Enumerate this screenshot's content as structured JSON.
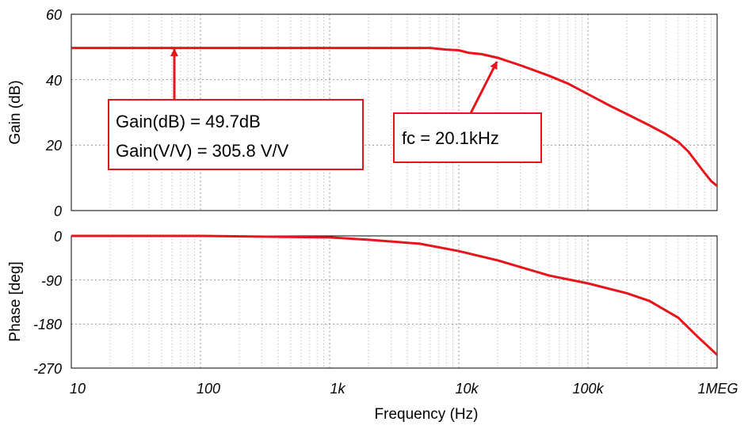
{
  "chart_data": [
    {
      "type": "line",
      "xscale": "log",
      "xlim": [
        10,
        1000000
      ],
      "ylim": [
        0,
        60
      ],
      "ylabel": "Gain (dB)",
      "xlabel": "",
      "yticks": [
        "60",
        "40",
        "20",
        "0"
      ],
      "grid": true,
      "series": [
        {
          "color": "#e8141b",
          "x": [
            10,
            100,
            1000,
            3000,
            6000,
            8000,
            10000,
            12000,
            15000,
            20000,
            30000,
            50000,
            70000,
            100000,
            150000,
            200000,
            300000,
            400000,
            500000,
            600000,
            700000,
            800000,
            900000,
            1000000
          ],
          "y": [
            49.7,
            49.7,
            49.7,
            49.7,
            49.7,
            49.2,
            49.0,
            48.2,
            47.8,
            46.7,
            44.4,
            41.2,
            38.8,
            35.6,
            31.9,
            29.5,
            26.0,
            23.4,
            21.0,
            18.0,
            14.5,
            11.5,
            9.0,
            7.5
          ]
        }
      ],
      "annotations": [
        {
          "lines": [
            "Gain(dB) = 49.7dB",
            "Gain(V/V) = 305.8 V/V"
          ],
          "arrow_to": {
            "x": 60,
            "y": 49.7
          }
        },
        {
          "lines": [
            "fc = 20.1kHz"
          ],
          "arrow_to": {
            "x": 20100,
            "y": 46.7
          }
        }
      ]
    },
    {
      "type": "line",
      "xscale": "log",
      "xlim": [
        10,
        1000000
      ],
      "ylim": [
        -270,
        0
      ],
      "ylabel": "Phase [deg]",
      "xlabel": "Frequency (Hz)",
      "yticks": [
        "0",
        "-90",
        "-180",
        "-270"
      ],
      "xticks": [
        "10",
        "100",
        "1k",
        "10k",
        "100k",
        "1MEG"
      ],
      "grid": true,
      "series": [
        {
          "color": "#e8141b",
          "x": [
            10,
            100,
            450,
            1000,
            2000,
            5000,
            10000,
            20000,
            50000,
            100000,
            200000,
            300000,
            500000,
            700000,
            1000000
          ],
          "y": [
            0,
            0,
            -2,
            -3,
            -8,
            -16,
            -31,
            -50,
            -81,
            -97,
            -117,
            -133,
            -167,
            -205,
            -243
          ]
        }
      ]
    }
  ]
}
